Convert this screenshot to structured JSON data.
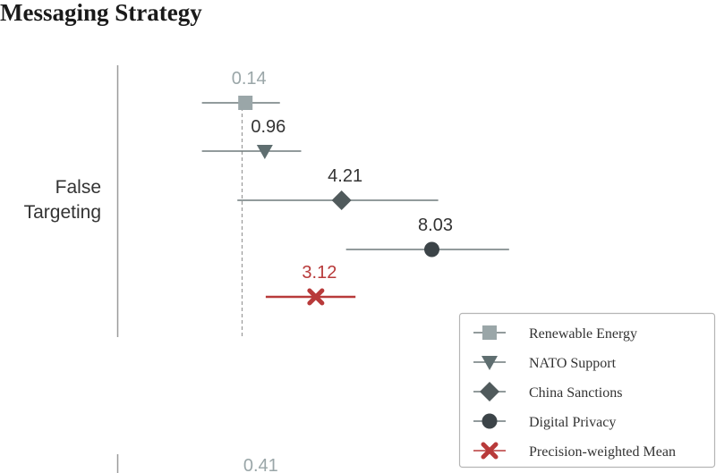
{
  "chart_data": {
    "type": "scatter",
    "title": "Messaging Strategy",
    "xlabel": "",
    "ylabel": "",
    "xlim": [
      -2.4,
      11.6
    ],
    "groups": [
      {
        "label": "False\nTargeting",
        "reference_line_x": 0,
        "points": [
          {
            "series": "Renewable Energy",
            "estimate": 0.14,
            "ci": [
              -1.7,
              1.6
            ],
            "label": "0.14"
          },
          {
            "series": "NATO Support",
            "estimate": 0.96,
            "ci": [
              -1.7,
              2.5
            ],
            "label": "0.96"
          },
          {
            "series": "China Sanctions",
            "estimate": 4.21,
            "ci": [
              -0.2,
              8.3
            ],
            "label": "4.21"
          },
          {
            "series": "Digital Privacy",
            "estimate": 8.03,
            "ci": [
              4.4,
              11.3
            ],
            "label": "8.03"
          },
          {
            "series": "Precision-weighted Mean",
            "estimate": 3.12,
            "ci": [
              1.0,
              4.8
            ],
            "label": "3.12"
          }
        ]
      },
      {
        "label": "",
        "points": [
          {
            "series": "Renewable Energy",
            "estimate": 0.41,
            "label": "0.41"
          }
        ]
      }
    ],
    "series": [
      {
        "name": "Renewable Energy",
        "marker": "square",
        "color": "#9aa6a8"
      },
      {
        "name": "NATO Support",
        "marker": "triangle-down",
        "color": "#5f6e70"
      },
      {
        "name": "China Sanctions",
        "marker": "diamond",
        "color": "#505a5c"
      },
      {
        "name": "Digital Privacy",
        "marker": "circle",
        "color": "#3c4448"
      },
      {
        "name": "Precision-weighted Mean",
        "marker": "x",
        "color": "#b83a3a"
      }
    ],
    "grid": false,
    "legend_position": "bottom-right"
  }
}
